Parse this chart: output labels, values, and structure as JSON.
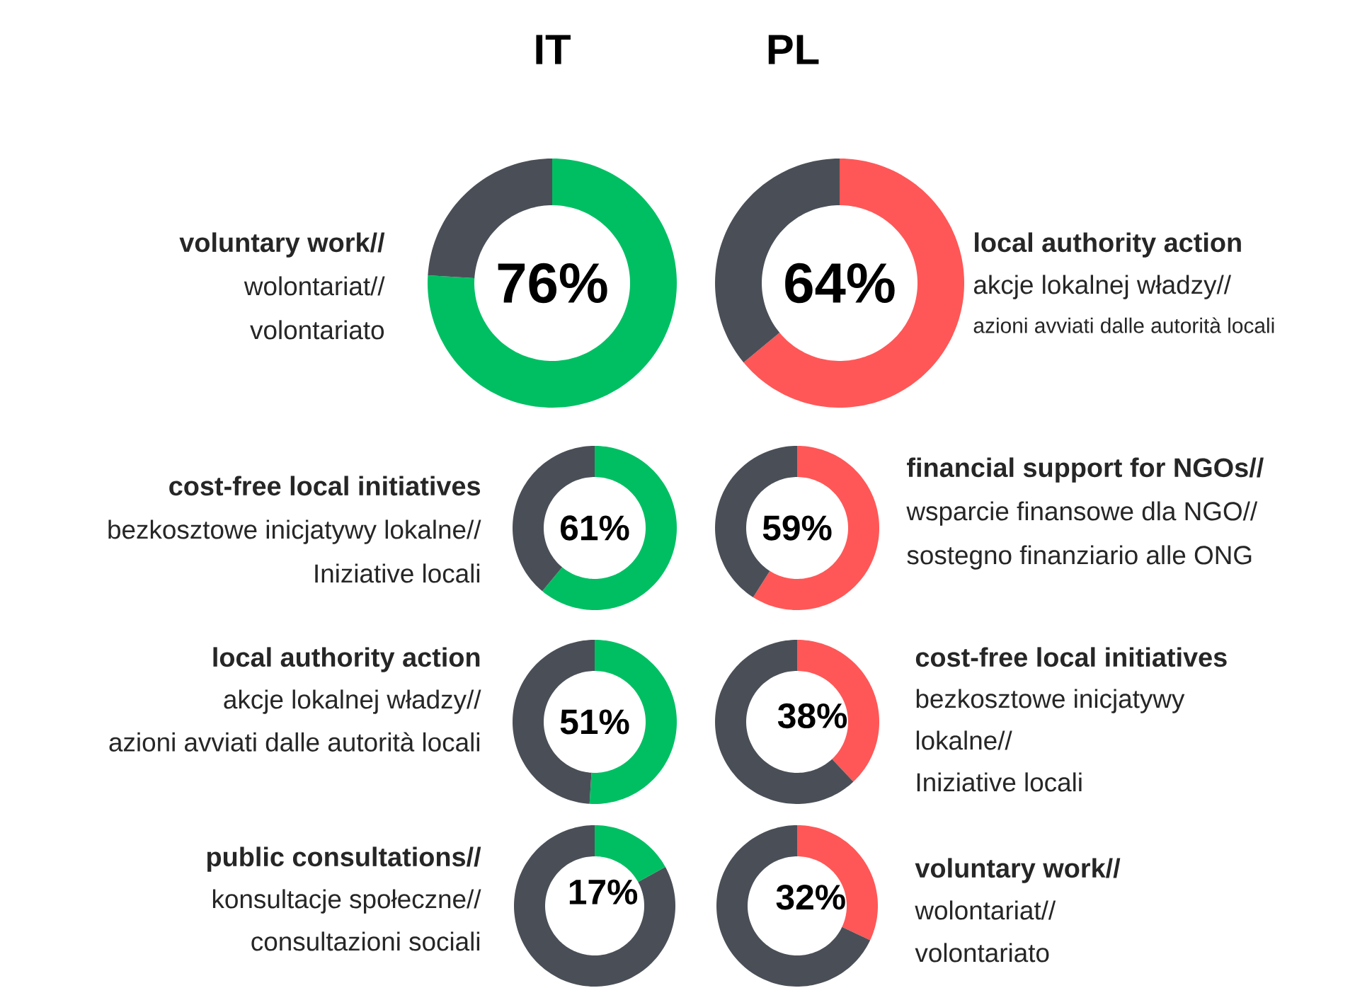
{
  "chart_data": [
    {
      "type": "other",
      "annotations": [
        "IT",
        "PL"
      ]
    },
    {
      "type": "donut",
      "title": "voluntary work//",
      "annotations": [
        "wolontariat//",
        "volontariato"
      ],
      "categories": [
        null,
        null
      ],
      "values": [
        76,
        24
      ],
      "colors": [
        "#00bf63",
        "#4a4f57"
      ],
      "value_labels": [
        "76%",
        null
      ]
    },
    {
      "type": "donut",
      "title": "local authority action",
      "annotations": [
        "akcje lokalnej władzy//",
        "azioni avviati dalle autorità locali"
      ],
      "categories": [
        null,
        null
      ],
      "values": [
        64,
        36
      ],
      "colors": [
        "#ff5757",
        "#4a4f57"
      ],
      "value_labels": [
        "64%",
        null
      ]
    },
    {
      "type": "donut",
      "title": "cost-free local initiatives",
      "annotations": [
        "bezkosztowe inicjatywy lokalne//",
        "Iniziative locali"
      ],
      "categories": [
        null,
        null
      ],
      "values": [
        61,
        39
      ],
      "colors": [
        "#00bf63",
        "#4a4f57"
      ],
      "value_labels": [
        "61%",
        null
      ]
    },
    {
      "type": "donut",
      "title": "financial support for NGOs//",
      "annotations": [
        "wsparcie finansowe dla NGO//",
        "sostegno finanziario alle ONG"
      ],
      "categories": [
        null,
        null
      ],
      "values": [
        59,
        41
      ],
      "colors": [
        "#ff5757",
        "#4a4f57"
      ],
      "value_labels": [
        "59%",
        null
      ]
    },
    {
      "type": "donut",
      "title": "local authority action",
      "annotations": [
        "akcje lokalnej władzy//",
        "azioni avviati dalle autorità locali"
      ],
      "categories": [
        null,
        null
      ],
      "values": [
        51,
        49
      ],
      "colors": [
        "#00bf63",
        "#4a4f57"
      ],
      "value_labels": [
        "51%",
        null
      ]
    },
    {
      "type": "donut",
      "title": "cost-free local initiatives",
      "annotations": [
        "bezkosztowe inicjatywy",
        "lokalne//",
        "Iniziative locali"
      ],
      "categories": [
        null,
        null
      ],
      "values": [
        38,
        62
      ],
      "colors": [
        "#ff5757",
        "#4a4f57"
      ],
      "value_labels": [
        "38%",
        null
      ]
    },
    {
      "type": "donut",
      "title": "public consultations//",
      "annotations": [
        "konsultacje społeczne//",
        "consultazioni sociali"
      ],
      "categories": [
        null,
        null
      ],
      "values": [
        17,
        83
      ],
      "colors": [
        "#00bf63",
        "#4a4f57"
      ],
      "value_labels": [
        "17%",
        null
      ]
    },
    {
      "type": "donut",
      "title": "voluntary work//",
      "annotations": [
        "wolontariat//",
        "volontariato"
      ],
      "categories": [
        null,
        null
      ],
      "values": [
        32,
        68
      ],
      "colors": [
        "#ff5757",
        "#4a4f57"
      ],
      "value_labels": [
        "32%",
        null
      ]
    }
  ]
}
